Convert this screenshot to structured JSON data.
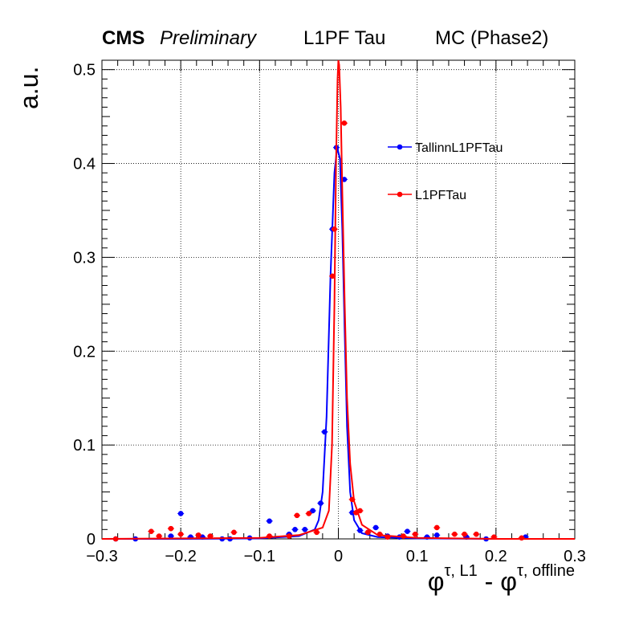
{
  "header": {
    "cms": "CMS",
    "preliminary": "Preliminary",
    "middle": "L1PF Tau",
    "right": "MC (Phase2)"
  },
  "chart_data": {
    "type": "scatter",
    "ylabel": "a.u.",
    "xlabel_base": "φ",
    "xlabel_sup1": "τ, L1",
    "xlabel_sep": " - ",
    "xlabel_sup2": "τ, offline",
    "xlim": [
      -0.3,
      0.3
    ],
    "ylim": [
      0,
      0.51
    ],
    "xticks": [
      -0.3,
      -0.2,
      -0.1,
      0,
      0.1,
      0.2,
      0.3
    ],
    "xtick_labels": [
      "−0.3",
      "−0.2",
      "−0.1",
      "0",
      "0.1",
      "0.2",
      "0.3"
    ],
    "yticks": [
      0,
      0.1,
      0.2,
      0.3,
      0.4,
      0.5
    ],
    "ytick_labels": [
      "0",
      "0.1",
      "0.2",
      "0.3",
      "0.4",
      "0.5"
    ],
    "grid": true,
    "legend_position": "top-right",
    "series": [
      {
        "name": "TallinnL1PFTau",
        "color": "#0000ff",
        "points": [
          [
            -0.2825,
            0.0
          ],
          [
            -0.2575,
            0.0
          ],
          [
            -0.2125,
            0.003
          ],
          [
            -0.2,
            0.027
          ],
          [
            -0.1875,
            0.002
          ],
          [
            -0.1725,
            0.002
          ],
          [
            -0.1475,
            0.0
          ],
          [
            -0.1375,
            0.0
          ],
          [
            -0.1125,
            0.001
          ],
          [
            -0.0875,
            0.019
          ],
          [
            -0.0625,
            0.005
          ],
          [
            -0.055,
            0.01
          ],
          [
            -0.0425,
            0.01
          ],
          [
            -0.0325,
            0.03
          ],
          [
            -0.0225,
            0.038
          ],
          [
            -0.0175,
            0.114
          ],
          [
            -0.0075,
            0.33
          ],
          [
            -0.0025,
            0.417
          ],
          [
            0.0075,
            0.383
          ],
          [
            0.0175,
            0.028
          ],
          [
            0.0275,
            0.009
          ],
          [
            0.0375,
            0.007
          ],
          [
            0.0475,
            0.012
          ],
          [
            0.0625,
            0.003
          ],
          [
            0.0775,
            0.002
          ],
          [
            0.0875,
            0.008
          ],
          [
            0.1125,
            0.002
          ],
          [
            0.125,
            0.004
          ],
          [
            0.1625,
            0.002
          ],
          [
            0.1875,
            0.0
          ],
          [
            0.2375,
            0.002
          ]
        ],
        "curve": [
          [
            -0.3,
            0.0
          ],
          [
            -0.2,
            0.0
          ],
          [
            -0.1,
            0.0005
          ],
          [
            -0.05,
            0.003
          ],
          [
            -0.03,
            0.01
          ],
          [
            -0.025,
            0.02
          ],
          [
            -0.02,
            0.05
          ],
          [
            -0.015,
            0.13
          ],
          [
            -0.01,
            0.28
          ],
          [
            -0.005,
            0.39
          ],
          [
            -0.0015,
            0.417
          ],
          [
            0.002,
            0.405
          ],
          [
            0.005,
            0.33
          ],
          [
            0.008,
            0.22
          ],
          [
            0.011,
            0.12
          ],
          [
            0.015,
            0.05
          ],
          [
            0.02,
            0.02
          ],
          [
            0.03,
            0.006
          ],
          [
            0.05,
            0.002
          ],
          [
            0.1,
            0.0005
          ],
          [
            0.2,
            0.0
          ],
          [
            0.3,
            0.0
          ]
        ]
      },
      {
        "name": "L1PFTau",
        "color": "#ff0000",
        "points": [
          [
            -0.2825,
            0.0
          ],
          [
            -0.2375,
            0.008
          ],
          [
            -0.2275,
            0.003
          ],
          [
            -0.2125,
            0.011
          ],
          [
            -0.2,
            0.005
          ],
          [
            -0.1775,
            0.004
          ],
          [
            -0.1625,
            0.003
          ],
          [
            -0.1325,
            0.007
          ],
          [
            -0.0875,
            0.003
          ],
          [
            -0.0625,
            0.003
          ],
          [
            -0.0525,
            0.025
          ],
          [
            -0.0375,
            0.027
          ],
          [
            -0.0275,
            0.007
          ],
          [
            -0.0075,
            0.28
          ],
          [
            -0.005,
            0.33
          ],
          [
            0.0075,
            0.443
          ],
          [
            0.0175,
            0.042
          ],
          [
            0.0225,
            0.028
          ],
          [
            0.0275,
            0.03
          ],
          [
            0.0375,
            0.007
          ],
          [
            0.0525,
            0.005
          ],
          [
            0.0625,
            0.002
          ],
          [
            0.0825,
            0.003
          ],
          [
            0.0975,
            0.005
          ],
          [
            0.125,
            0.012
          ],
          [
            0.1475,
            0.005
          ],
          [
            0.16,
            0.005
          ],
          [
            0.175,
            0.005
          ],
          [
            0.1975,
            0.002
          ],
          [
            0.2325,
            0.001
          ]
        ],
        "curve": [
          [
            -0.3,
            0.0
          ],
          [
            -0.2,
            0.0005
          ],
          [
            -0.1,
            0.001
          ],
          [
            -0.05,
            0.004
          ],
          [
            -0.02,
            0.012
          ],
          [
            -0.012,
            0.03
          ],
          [
            -0.008,
            0.1
          ],
          [
            -0.005,
            0.25
          ],
          [
            -0.003,
            0.4
          ],
          [
            -0.001,
            0.49
          ],
          [
            0.0,
            0.51
          ],
          [
            0.001,
            0.505
          ],
          [
            0.003,
            0.46
          ],
          [
            0.005,
            0.37
          ],
          [
            0.008,
            0.25
          ],
          [
            0.011,
            0.15
          ],
          [
            0.015,
            0.08
          ],
          [
            0.02,
            0.04
          ],
          [
            0.03,
            0.015
          ],
          [
            0.05,
            0.004
          ],
          [
            0.1,
            0.001
          ],
          [
            0.2,
            0.0
          ],
          [
            0.3,
            0.0
          ]
        ]
      }
    ]
  }
}
